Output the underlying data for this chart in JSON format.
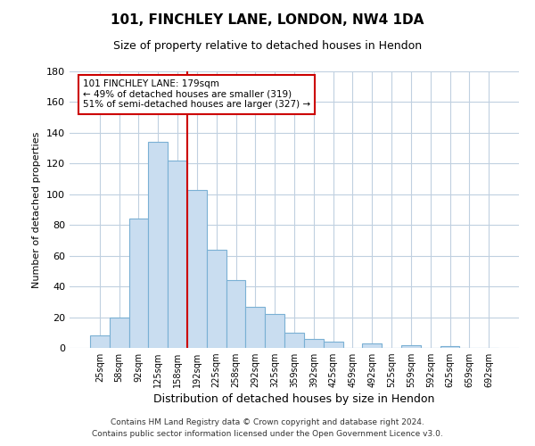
{
  "title": "101, FINCHLEY LANE, LONDON, NW4 1DA",
  "subtitle": "Size of property relative to detached houses in Hendon",
  "xlabel": "Distribution of detached houses by size in Hendon",
  "ylabel": "Number of detached properties",
  "bar_labels": [
    "25sqm",
    "58sqm",
    "92sqm",
    "125sqm",
    "158sqm",
    "192sqm",
    "225sqm",
    "258sqm",
    "292sqm",
    "325sqm",
    "359sqm",
    "392sqm",
    "425sqm",
    "459sqm",
    "492sqm",
    "525sqm",
    "559sqm",
    "592sqm",
    "625sqm",
    "659sqm",
    "692sqm"
  ],
  "bar_values": [
    8,
    20,
    84,
    134,
    122,
    103,
    64,
    44,
    27,
    22,
    10,
    6,
    4,
    0,
    3,
    0,
    2,
    0,
    1,
    0,
    0
  ],
  "bar_color": "#c9ddf0",
  "bar_edge_color": "#7ab0d4",
  "vline_x": 4.5,
  "vline_color": "#cc0000",
  "ylim": [
    0,
    180
  ],
  "yticks": [
    0,
    20,
    40,
    60,
    80,
    100,
    120,
    140,
    160,
    180
  ],
  "annotation_line1": "101 FINCHLEY LANE: 179sqm",
  "annotation_line2": "← 49% of detached houses are smaller (319)",
  "annotation_line3": "51% of semi-detached houses are larger (327) →",
  "annotation_box_color": "#ffffff",
  "annotation_box_edge": "#cc0000",
  "footnote1": "Contains HM Land Registry data © Crown copyright and database right 2024.",
  "footnote2": "Contains public sector information licensed under the Open Government Licence v3.0.",
  "background_color": "#ffffff",
  "grid_color": "#c0d0e0"
}
